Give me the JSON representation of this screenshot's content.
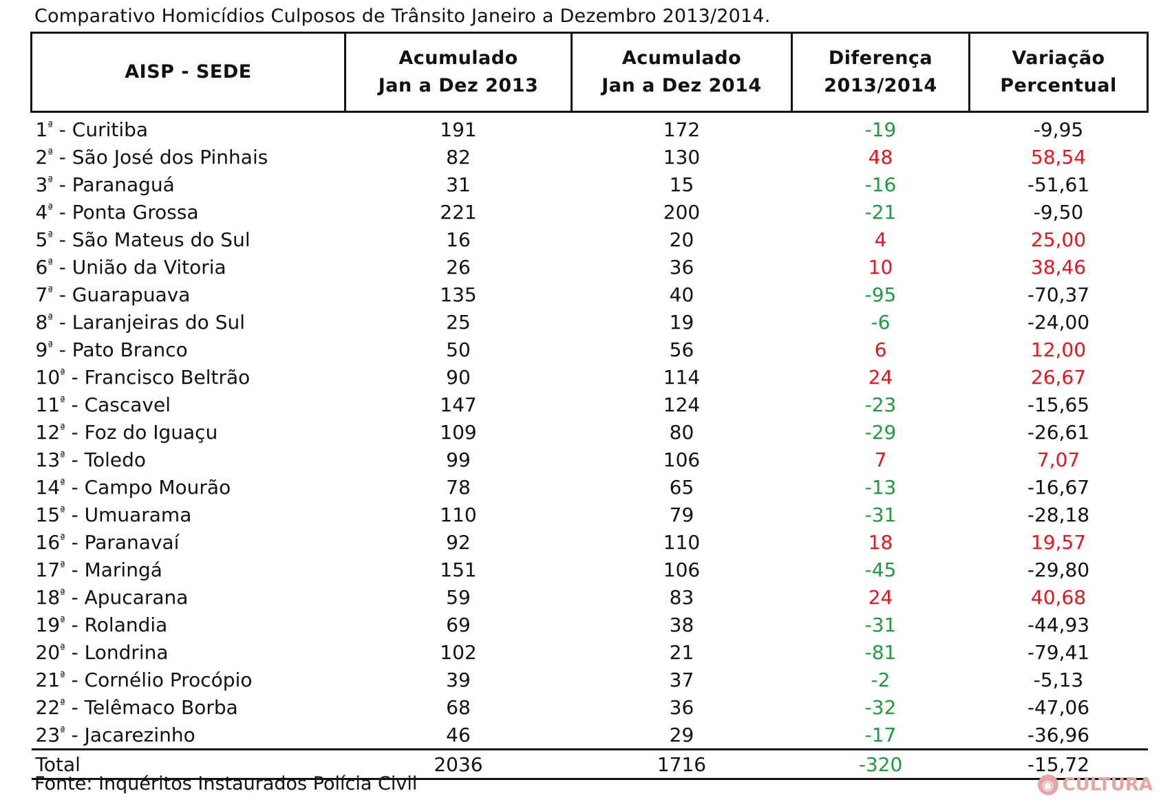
{
  "title": "Comparativo Homicídios Culposos de Trânsito Janeiro a Dezembro 2013/2014.",
  "table": {
    "headers": [
      {
        "line1": "AISP - SEDE",
        "line2": ""
      },
      {
        "line1": "Acumulado",
        "line2": "Jan a Dez 2013"
      },
      {
        "line1": "Acumulado",
        "line2": "Jan a Dez 2014"
      },
      {
        "line1": "Diferença",
        "line2": "2013/2014"
      },
      {
        "line1": "Variação",
        "line2": "Percentual"
      }
    ],
    "rows": [
      {
        "num": "1",
        "ord": "ª",
        "name": " - Curitiba",
        "y2013": "191",
        "y2014": "172",
        "diff": "-19",
        "pct": "-9,95",
        "status": "decrease"
      },
      {
        "num": "2",
        "ord": "ª",
        "name": " - São José dos Pinhais",
        "y2013": "82",
        "y2014": "130",
        "diff": "48",
        "pct": "58,54",
        "status": "increase"
      },
      {
        "num": "3",
        "ord": "ª",
        "name": " - Paranaguá",
        "y2013": "31",
        "y2014": "15",
        "diff": "-16",
        "pct": "-51,61",
        "status": "decrease"
      },
      {
        "num": "4",
        "ord": "ª",
        "name": " - Ponta Grossa",
        "y2013": "221",
        "y2014": "200",
        "diff": "-21",
        "pct": "-9,50",
        "status": "decrease"
      },
      {
        "num": "5",
        "ord": "ª",
        "name": " - São Mateus do Sul",
        "y2013": "16",
        "y2014": "20",
        "diff": "4",
        "pct": "25,00",
        "status": "increase"
      },
      {
        "num": "6",
        "ord": "ª",
        "name": " - União da Vitoria",
        "y2013": "26",
        "y2014": "36",
        "diff": "10",
        "pct": "38,46",
        "status": "increase"
      },
      {
        "num": "7",
        "ord": "ª",
        "name": " - Guarapuava",
        "y2013": "135",
        "y2014": "40",
        "diff": "-95",
        "pct": "-70,37",
        "status": "decrease"
      },
      {
        "num": "8",
        "ord": "ª",
        "name": " - Laranjeiras do Sul",
        "y2013": "25",
        "y2014": "19",
        "diff": "-6",
        "pct": "-24,00",
        "status": "decrease"
      },
      {
        "num": "9",
        "ord": "ª",
        "name": " - Pato Branco",
        "y2013": "50",
        "y2014": "56",
        "diff": "6",
        "pct": "12,00",
        "status": "increase"
      },
      {
        "num": "10",
        "ord": "ª",
        "name": " - Francisco Beltrão",
        "y2013": "90",
        "y2014": "114",
        "diff": "24",
        "pct": "26,67",
        "status": "increase"
      },
      {
        "num": "11",
        "ord": "ª",
        "name": " - Cascavel",
        "y2013": "147",
        "y2014": "124",
        "diff": "-23",
        "pct": "-15,65",
        "status": "decrease"
      },
      {
        "num": "12",
        "ord": "ª",
        "name": " - Foz do Iguaçu",
        "y2013": "109",
        "y2014": "80",
        "diff": "-29",
        "pct": "-26,61",
        "status": "decrease"
      },
      {
        "num": "13",
        "ord": "ª",
        "name": " - Toledo",
        "y2013": "99",
        "y2014": "106",
        "diff": "7",
        "pct": "7,07",
        "status": "increase"
      },
      {
        "num": "14",
        "ord": "ª",
        "name": " - Campo Mourão",
        "y2013": "78",
        "y2014": "65",
        "diff": "-13",
        "pct": "-16,67",
        "status": "decrease"
      },
      {
        "num": "15",
        "ord": "ª",
        "name": " - Umuarama",
        "y2013": "110",
        "y2014": "79",
        "diff": "-31",
        "pct": "-28,18",
        "status": "decrease"
      },
      {
        "num": "16",
        "ord": "ª",
        "name": " - Paranavaí",
        "y2013": "92",
        "y2014": "110",
        "diff": "18",
        "pct": "19,57",
        "status": "increase"
      },
      {
        "num": "17",
        "ord": "ª",
        "name": " - Maringá",
        "y2013": "151",
        "y2014": "106",
        "diff": "-45",
        "pct": "-29,80",
        "status": "decrease"
      },
      {
        "num": "18",
        "ord": "ª",
        "name": " - Apucarana",
        "y2013": "59",
        "y2014": "83",
        "diff": "24",
        "pct": "40,68",
        "status": "increase"
      },
      {
        "num": "19",
        "ord": "ª",
        "name": " - Rolandia",
        "y2013": "69",
        "y2014": "38",
        "diff": "-31",
        "pct": "-44,93",
        "status": "decrease"
      },
      {
        "num": "20",
        "ord": "ª",
        "name": " - Londrina",
        "y2013": "102",
        "y2014": "21",
        "diff": "-81",
        "pct": "-79,41",
        "status": "decrease"
      },
      {
        "num": "21",
        "ord": "ª",
        "name": " - Cornélio Procópio",
        "y2013": "39",
        "y2014": "37",
        "diff": "-2",
        "pct": "-5,13",
        "status": "decrease"
      },
      {
        "num": "22",
        "ord": "ª",
        "name": " - Telêmaco Borba",
        "y2013": "68",
        "y2014": "36",
        "diff": "-32",
        "pct": "-47,06",
        "status": "decrease"
      },
      {
        "num": "23",
        "ord": "ª",
        "name": " - Jacarezinho",
        "y2013": "46",
        "y2014": "29",
        "diff": "-17",
        "pct": "-36,96",
        "status": "decrease"
      }
    ],
    "total": {
      "name": "Total",
      "y2013": "2036",
      "y2014": "1716",
      "diff": "-320",
      "pct": "-15,72",
      "status": "decrease"
    }
  },
  "colors": {
    "increase": "#e3141b",
    "decrease": "#1e9a3c",
    "watermark": "#e5a4a6"
  },
  "source": "Fonte: Inquéritos Instaurados Polícia Civil",
  "watermark": {
    "text": "CULTURA",
    "icon": "cultura-logo-icon"
  }
}
